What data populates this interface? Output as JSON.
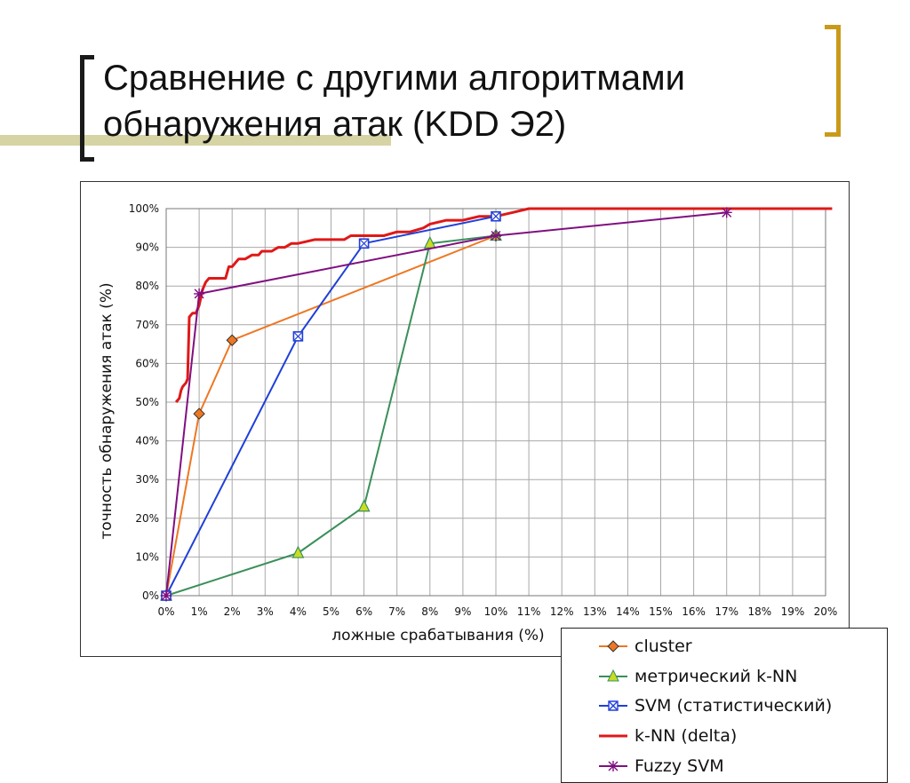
{
  "slide": {
    "title_line1": "Сравнение с другими алгоритмами",
    "title_line2": "обнаружения атак (KDD Э2)"
  },
  "chart_data": {
    "type": "line",
    "xlabel": "ложные срабатывания (%)",
    "ylabel": "точность обнаружения атак (%)",
    "xlim": [
      0,
      20
    ],
    "ylim": [
      0,
      100
    ],
    "x_ticks": [
      0,
      1,
      2,
      3,
      4,
      5,
      6,
      7,
      8,
      9,
      10,
      11,
      12,
      13,
      14,
      15,
      16,
      17,
      18,
      19,
      20
    ],
    "x_tick_labels": [
      "0%",
      "1%",
      "2%",
      "3%",
      "4%",
      "5%",
      "6%",
      "7%",
      "8%",
      "9%",
      "10%",
      "11%",
      "12%",
      "13%",
      "14%",
      "15%",
      "16%",
      "17%",
      "18%",
      "19%",
      "20%"
    ],
    "y_ticks": [
      0,
      10,
      20,
      30,
      40,
      50,
      60,
      70,
      80,
      90,
      100
    ],
    "y_tick_labels": [
      "0%",
      "10%",
      "20%",
      "30%",
      "40%",
      "50%",
      "60%",
      "70%",
      "80%",
      "90%",
      "100%"
    ],
    "grid": true,
    "legend_position": "bottom-right",
    "series": [
      {
        "name": "cluster",
        "color": "#ee7722",
        "marker": "diamond",
        "x": [
          0,
          1,
          2,
          10
        ],
        "y": [
          0,
          47,
          66,
          93
        ]
      },
      {
        "name": "метрический k-NN",
        "color": "#3a8f5a",
        "marker": "triangle",
        "marker_fill": "#c8dd22",
        "x": [
          0,
          4,
          6,
          8,
          10
        ],
        "y": [
          0,
          11,
          23,
          91,
          93
        ]
      },
      {
        "name": "SVM (статистический)",
        "color": "#1f3fd8",
        "marker": "square-x",
        "x": [
          0,
          4,
          6,
          10
        ],
        "y": [
          0,
          67,
          91,
          98
        ]
      },
      {
        "name": "k-NN (delta)",
        "color": "#e01818",
        "marker": "none",
        "x": [
          0.3,
          0.4,
          0.45,
          0.5,
          0.6,
          0.65,
          0.7,
          0.8,
          0.9,
          1.0,
          1.05,
          1.1,
          1.2,
          1.3,
          1.4,
          1.6,
          1.8,
          1.9,
          2.0,
          2.1,
          2.2,
          2.4,
          2.6,
          2.8,
          2.9,
          3.2,
          3.4,
          3.6,
          3.8,
          4.0,
          4.5,
          5.0,
          5.4,
          5.6,
          6.0,
          6.3,
          6.6,
          7.0,
          7.4,
          7.8,
          8.0,
          8.5,
          9.0,
          9.5,
          10.0,
          10.5,
          11.0,
          12.0,
          16.0,
          20.2
        ],
        "y": [
          50,
          51,
          53,
          54,
          55,
          56,
          72,
          73,
          73,
          75,
          77,
          79,
          81,
          82,
          82,
          82,
          82,
          85,
          85,
          86,
          87,
          87,
          88,
          88,
          89,
          89,
          90,
          90,
          91,
          91,
          92,
          92,
          92,
          93,
          93,
          93,
          93,
          94,
          94,
          95,
          96,
          97,
          97,
          98,
          98,
          99,
          100,
          100,
          100,
          100
        ]
      },
      {
        "name": "Fuzzy SVM",
        "color": "#800f80",
        "marker": "star",
        "x": [
          0,
          1,
          10,
          17
        ],
        "y": [
          0,
          78,
          93,
          99
        ]
      }
    ]
  }
}
